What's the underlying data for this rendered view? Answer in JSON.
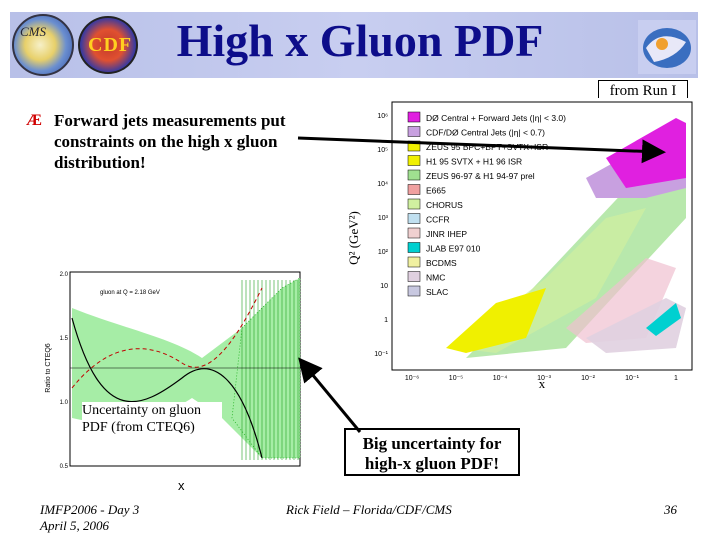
{
  "slide": {
    "title": "High x Gluon PDF",
    "from_run": "from Run I",
    "bullet_symbol": "Æ",
    "bullet_text": "Forward jets measurements put constraints on the high x gluon distribution!",
    "callout_left": "Uncertainty on gluon PDF (from CTEQ6)",
    "callout_right": "Big uncertainty for high-x gluon PDF!",
    "x_axis_letter": "x"
  },
  "logos": {
    "cms_text": "CMS",
    "cdf_text": "CDF"
  },
  "right_plot": {
    "ylabel": "Q² (GeV²)",
    "xlabel": "x",
    "y_ticks": [
      "10⁶",
      "10⁵",
      "10⁴",
      "10³",
      "10²",
      "10",
      "1",
      "10⁻¹"
    ],
    "x_ticks": [
      "10⁻⁶",
      "10⁻⁵",
      "10⁻⁴",
      "10⁻³",
      "10⁻²",
      "10⁻¹",
      "1"
    ],
    "legend": [
      {
        "label": "DØ Central + Forward Jets (|η| < 3.0)",
        "color": "#e020e0"
      },
      {
        "label": "CDF/DØ Central Jets (|η| < 0.7)",
        "color": "#c8a0e0"
      },
      {
        "label": "ZEUS 95 BPC+BPT+SVTX+ISR",
        "color": "#f0f000"
      },
      {
        "label": "H1 95 SVTX + H1 96 ISR",
        "color": "#f0f000"
      },
      {
        "label": "ZEUS 96-97 & H1 94-97 prel",
        "color": "#a0e090"
      },
      {
        "label": "E665",
        "color": "#f0a0a0"
      },
      {
        "label": "CHORUS",
        "color": "#d0f0a0"
      },
      {
        "label": "CCFR",
        "color": "#c0e0f0"
      },
      {
        "label": "JINR IHEP",
        "color": "#f0d0d0"
      },
      {
        "label": "JLAB E97 010",
        "color": "#00d0d0"
      },
      {
        "label": "BCDMS",
        "color": "#f0f0a0"
      },
      {
        "label": "NMC",
        "color": "#e0d0e0"
      },
      {
        "label": "SLAC",
        "color": "#c8c8e0"
      }
    ]
  },
  "left_plot": {
    "ylabel": "Ratio to CTEQ6",
    "annotation": "gluon at Q = 2.18 GeV",
    "y_ticks": [
      "2.0",
      "1.5",
      "1.0",
      "0.5"
    ]
  },
  "footer": {
    "left_line1": "IMFP2006 - Day 3",
    "left_line2": "April 5, 2006",
    "center": "Rick Field – Florida/CDF/CMS",
    "page": "36"
  }
}
